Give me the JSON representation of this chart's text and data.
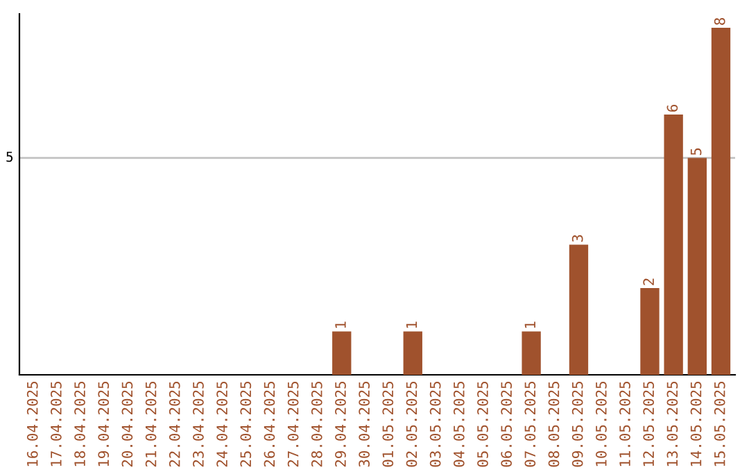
{
  "chart_data": {
    "type": "bar",
    "categories": [
      "16.04.2025",
      "17.04.2025",
      "18.04.2025",
      "19.04.2025",
      "20.04.2025",
      "21.04.2025",
      "22.04.2025",
      "23.04.2025",
      "24.04.2025",
      "25.04.2025",
      "26.04.2025",
      "27.04.2025",
      "28.04.2025",
      "29.04.2025",
      "30.04.2025",
      "01.05.2025",
      "02.05.2025",
      "03.05.2025",
      "04.05.2025",
      "05.05.2025",
      "06.05.2025",
      "07.05.2025",
      "08.05.2025",
      "09.05.2025",
      "10.05.2025",
      "11.05.2025",
      "12.05.2025",
      "13.05.2025",
      "14.05.2025",
      "15.05.2025"
    ],
    "values": [
      null,
      null,
      null,
      null,
      null,
      null,
      null,
      null,
      null,
      null,
      null,
      null,
      null,
      1,
      null,
      null,
      1,
      null,
      null,
      null,
      null,
      1,
      null,
      3,
      null,
      null,
      2,
      6,
      5,
      8
    ],
    "data_labels": true,
    "color": "#a0522d",
    "ref_lines": [
      {
        "axis": "y",
        "value": 5,
        "label": "5",
        "color": "#c8c8c8"
      }
    ]
  }
}
